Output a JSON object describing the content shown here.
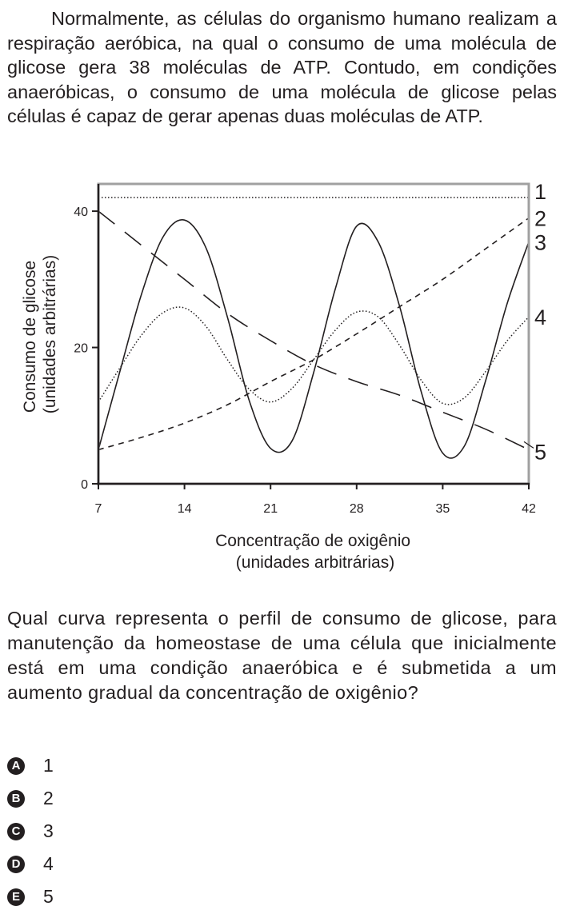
{
  "intro_text": "Normalmente, as células do organismo humano realizam a respiração aeróbica, na qual o consumo de uma molécula de glicose gera 38 moléculas de ATP. Contudo, em condições anaeróbicas, o consumo de uma molécula de glicose pelas células é capaz de gerar apenas duas moléculas de ATP.",
  "question_text": "Qual curva representa o perfil de consumo de glicose, para manutenção da homeostase de uma célula que inicialmente está em uma condição anaeróbica e é submetida a um aumento gradual da concentração de oxigênio?",
  "options": [
    {
      "letter": "A",
      "text": "1"
    },
    {
      "letter": "B",
      "text": "2"
    },
    {
      "letter": "C",
      "text": "3"
    },
    {
      "letter": "D",
      "text": "4"
    },
    {
      "letter": "E",
      "text": "5"
    }
  ],
  "chart_data": {
    "type": "line",
    "title": "",
    "xlabel": [
      "Concentração de oxigênio",
      "(unidades arbitrárias)"
    ],
    "ylabel": [
      "Consumo de glicose",
      "(unidades arbitrárias)"
    ],
    "xlim": [
      7,
      42
    ],
    "ylim": [
      0,
      44
    ],
    "xticks": [
      7,
      14,
      21,
      28,
      35,
      42
    ],
    "yticks": [
      0,
      20,
      40
    ],
    "grid": false,
    "series": [
      {
        "name": "1",
        "style": "dotted",
        "x": [
          7,
          42
        ],
        "y": [
          42,
          42
        ]
      },
      {
        "name": "2",
        "style": "dashed",
        "x": [
          7,
          10.5,
          14,
          17.5,
          21,
          24.5,
          28,
          31.5,
          35,
          38.5,
          42
        ],
        "y": [
          5,
          6.8,
          8.9,
          11.6,
          15,
          18.2,
          22,
          26,
          30,
          34.5,
          39
        ]
      },
      {
        "name": "3",
        "style": "solid",
        "x": [
          7,
          8.75,
          10.5,
          12.25,
          14,
          15.75,
          17.5,
          19.25,
          21,
          22.75,
          24.5,
          26.25,
          28,
          29.75,
          31.5,
          33.25,
          35,
          36.75,
          38.5,
          40.25,
          42
        ],
        "y": [
          5,
          16.5,
          27.8,
          36.2,
          38.7,
          34.6,
          24.4,
          12.3,
          5.2,
          6.3,
          16.3,
          28.5,
          37.8,
          35.5,
          26,
          13.5,
          4.5,
          5.5,
          15.2,
          26.5,
          35.5
        ]
      },
      {
        "name": "4",
        "style": "dotted",
        "x": [
          7,
          8.75,
          10.5,
          12.25,
          14,
          15.75,
          17.5,
          19.25,
          21,
          22.75,
          24.5,
          26.25,
          28,
          29.75,
          31.5,
          33.25,
          35,
          36.75,
          38.5,
          40.25,
          42
        ],
        "y": [
          12,
          17,
          21.8,
          25.1,
          25.8,
          23.1,
          18.2,
          13.9,
          12,
          14,
          18.2,
          22.5,
          25.2,
          24.5,
          20.3,
          15.2,
          11.8,
          12.6,
          16.5,
          21,
          24.5
        ]
      },
      {
        "name": "5",
        "style": "long-dash",
        "x": [
          7,
          10.5,
          14,
          17.5,
          21,
          24.5,
          28,
          31.5,
          35,
          38.5,
          42
        ],
        "y": [
          40,
          35,
          30,
          25,
          21,
          17.5,
          15,
          13,
          10.5,
          8,
          5
        ]
      }
    ]
  }
}
